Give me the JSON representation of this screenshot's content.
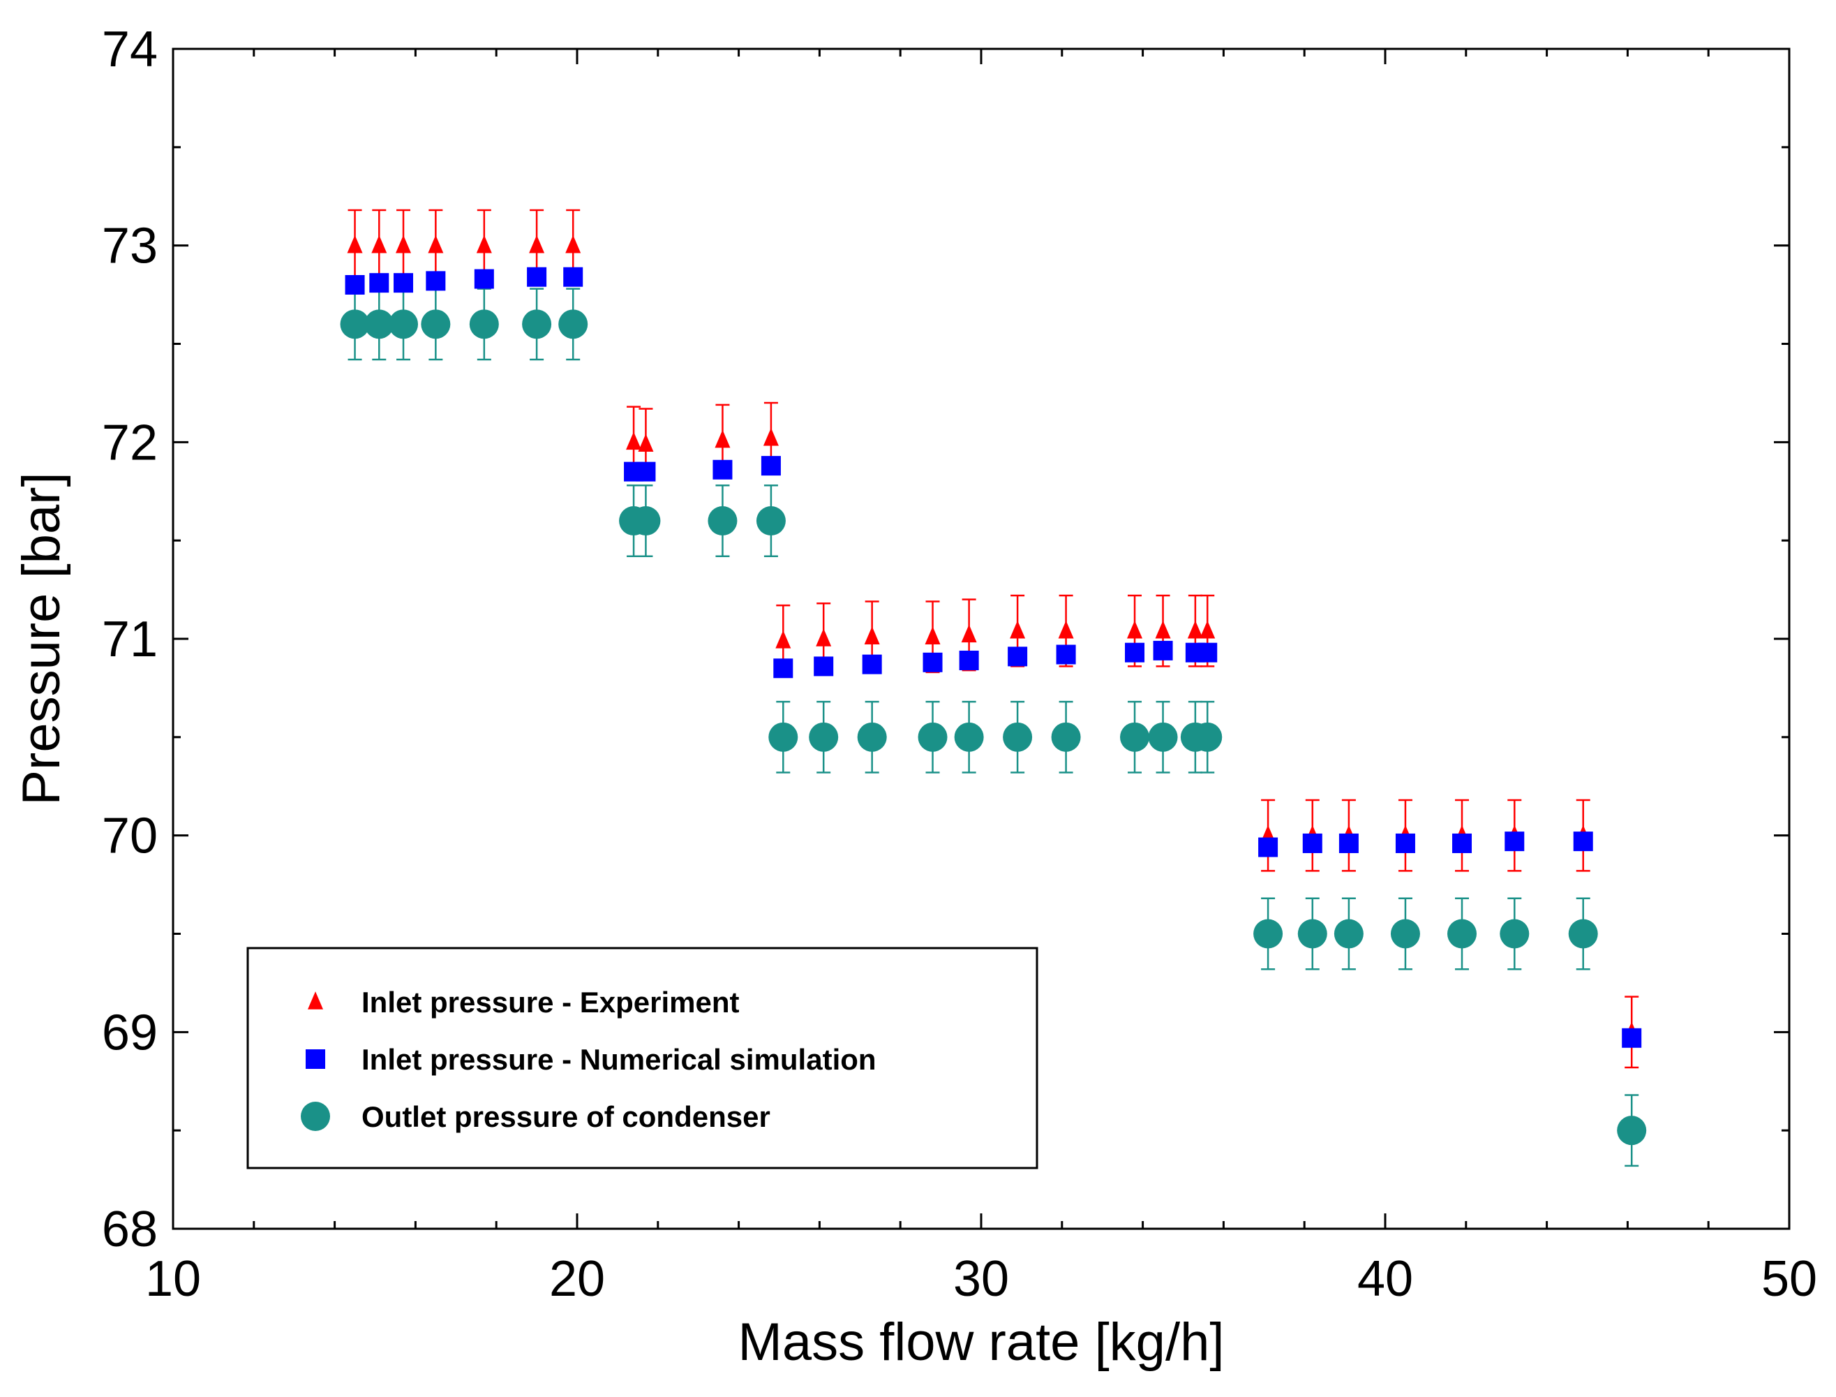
{
  "chart_data": {
    "type": "scatter",
    "title": "",
    "xlabel": "Mass flow rate [kg/h]",
    "ylabel": "Pressure [bar]",
    "xlim": [
      10,
      50
    ],
    "ylim": [
      68,
      74
    ],
    "xticks": [
      10,
      20,
      30,
      40,
      50
    ],
    "yticks": [
      68,
      69,
      70,
      71,
      72,
      73,
      74
    ],
    "grid": false,
    "legend_position": "bottom-left",
    "series": [
      {
        "name": "Inlet pressure - Experiment",
        "marker": "triangle",
        "color": "#ff0000",
        "error": 0.18,
        "points": [
          [
            14.5,
            73.0
          ],
          [
            15.1,
            73.0
          ],
          [
            15.7,
            73.0
          ],
          [
            16.5,
            73.0
          ],
          [
            17.7,
            73.0
          ],
          [
            19.0,
            73.0
          ],
          [
            19.9,
            73.0
          ],
          [
            21.4,
            72.0
          ],
          [
            21.7,
            71.99
          ],
          [
            23.6,
            72.01
          ],
          [
            24.8,
            72.02
          ],
          [
            25.1,
            70.99
          ],
          [
            26.1,
            71.0
          ],
          [
            27.3,
            71.01
          ],
          [
            28.8,
            71.01
          ],
          [
            29.7,
            71.02
          ],
          [
            30.9,
            71.04
          ],
          [
            32.1,
            71.04
          ],
          [
            33.8,
            71.04
          ],
          [
            34.5,
            71.04
          ],
          [
            35.3,
            71.04
          ],
          [
            35.6,
            71.04
          ],
          [
            37.1,
            70.0
          ],
          [
            38.2,
            70.0
          ],
          [
            39.1,
            70.0
          ],
          [
            40.5,
            70.0
          ],
          [
            41.9,
            70.0
          ],
          [
            43.2,
            70.0
          ],
          [
            44.9,
            70.0
          ],
          [
            46.1,
            69.0
          ]
        ]
      },
      {
        "name": "Inlet pressure - Numerical simulation",
        "marker": "square",
        "color": "#0000ff",
        "points": [
          [
            14.5,
            72.8
          ],
          [
            15.1,
            72.81
          ],
          [
            15.7,
            72.81
          ],
          [
            16.5,
            72.82
          ],
          [
            17.7,
            72.83
          ],
          [
            19.0,
            72.84
          ],
          [
            19.9,
            72.84
          ],
          [
            21.4,
            71.85
          ],
          [
            21.7,
            71.85
          ],
          [
            23.6,
            71.86
          ],
          [
            24.8,
            71.88
          ],
          [
            25.1,
            70.85
          ],
          [
            26.1,
            70.86
          ],
          [
            27.3,
            70.87
          ],
          [
            28.8,
            70.88
          ],
          [
            29.7,
            70.89
          ],
          [
            30.9,
            70.91
          ],
          [
            32.1,
            70.92
          ],
          [
            33.8,
            70.93
          ],
          [
            34.5,
            70.94
          ],
          [
            35.3,
            70.93
          ],
          [
            35.6,
            70.93
          ],
          [
            37.1,
            69.94
          ],
          [
            38.2,
            69.96
          ],
          [
            39.1,
            69.96
          ],
          [
            40.5,
            69.96
          ],
          [
            41.9,
            69.96
          ],
          [
            43.2,
            69.97
          ],
          [
            44.9,
            69.97
          ],
          [
            46.1,
            68.97
          ]
        ]
      },
      {
        "name": "Outlet pressure of condenser",
        "marker": "circle",
        "color": "#1a9188",
        "error": 0.18,
        "points": [
          [
            14.5,
            72.6
          ],
          [
            15.1,
            72.6
          ],
          [
            15.7,
            72.6
          ],
          [
            16.5,
            72.6
          ],
          [
            17.7,
            72.6
          ],
          [
            19.0,
            72.6
          ],
          [
            19.9,
            72.6
          ],
          [
            21.4,
            71.6
          ],
          [
            21.7,
            71.6
          ],
          [
            23.6,
            71.6
          ],
          [
            24.8,
            71.6
          ],
          [
            25.1,
            70.5
          ],
          [
            26.1,
            70.5
          ],
          [
            27.3,
            70.5
          ],
          [
            28.8,
            70.5
          ],
          [
            29.7,
            70.5
          ],
          [
            30.9,
            70.5
          ],
          [
            32.1,
            70.5
          ],
          [
            33.8,
            70.5
          ],
          [
            34.5,
            70.5
          ],
          [
            35.3,
            70.5
          ],
          [
            35.6,
            70.5
          ],
          [
            37.1,
            69.5
          ],
          [
            38.2,
            69.5
          ],
          [
            39.1,
            69.5
          ],
          [
            40.5,
            69.5
          ],
          [
            41.9,
            69.5
          ],
          [
            43.2,
            69.5
          ],
          [
            44.9,
            69.5
          ],
          [
            46.1,
            68.5
          ]
        ]
      }
    ]
  }
}
